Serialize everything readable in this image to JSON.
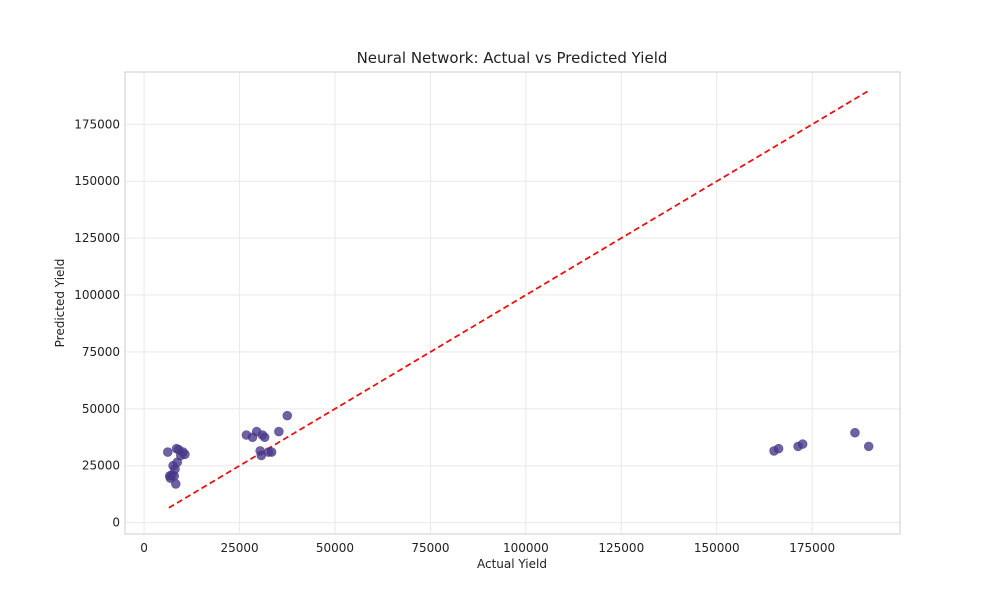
{
  "chart_data": {
    "type": "scatter",
    "title": "Neural Network: Actual vs Predicted Yield",
    "xlabel": "Actual Yield",
    "ylabel": "Predicted Yield",
    "xlim": [
      -5000,
      198000
    ],
    "ylim": [
      -5000,
      198000
    ],
    "xticks": [
      0,
      25000,
      50000,
      75000,
      100000,
      125000,
      150000,
      175000
    ],
    "yticks": [
      0,
      25000,
      50000,
      75000,
      100000,
      125000,
      150000,
      175000
    ],
    "grid": true,
    "point_color": "#4b3a8c",
    "reference_line": {
      "style": "dashed",
      "color": "#ee1111",
      "from": [
        6500,
        6500
      ],
      "to": [
        189500,
        189500
      ]
    },
    "series": [
      {
        "points": [
          [
            6200,
            31000
          ],
          [
            6700,
            20500
          ],
          [
            6900,
            19500
          ],
          [
            7300,
            21000
          ],
          [
            7600,
            25000
          ],
          [
            7900,
            20500
          ],
          [
            8100,
            23500
          ],
          [
            8300,
            17000
          ],
          [
            8500,
            32500
          ],
          [
            8700,
            26500
          ],
          [
            9100,
            32000
          ],
          [
            9600,
            29500
          ],
          [
            10200,
            31000
          ],
          [
            10700,
            30000
          ],
          [
            26800,
            38500
          ],
          [
            28400,
            37500
          ],
          [
            29500,
            40000
          ],
          [
            30400,
            31500
          ],
          [
            30700,
            29500
          ],
          [
            31000,
            38500
          ],
          [
            31600,
            37500
          ],
          [
            32600,
            31000
          ],
          [
            33400,
            31000
          ],
          [
            35300,
            40000
          ],
          [
            37500,
            47000
          ],
          [
            165000,
            31500
          ],
          [
            166200,
            32500
          ],
          [
            171300,
            33500
          ],
          [
            172500,
            34500
          ],
          [
            186200,
            39500
          ],
          [
            189800,
            33500
          ]
        ]
      }
    ]
  }
}
